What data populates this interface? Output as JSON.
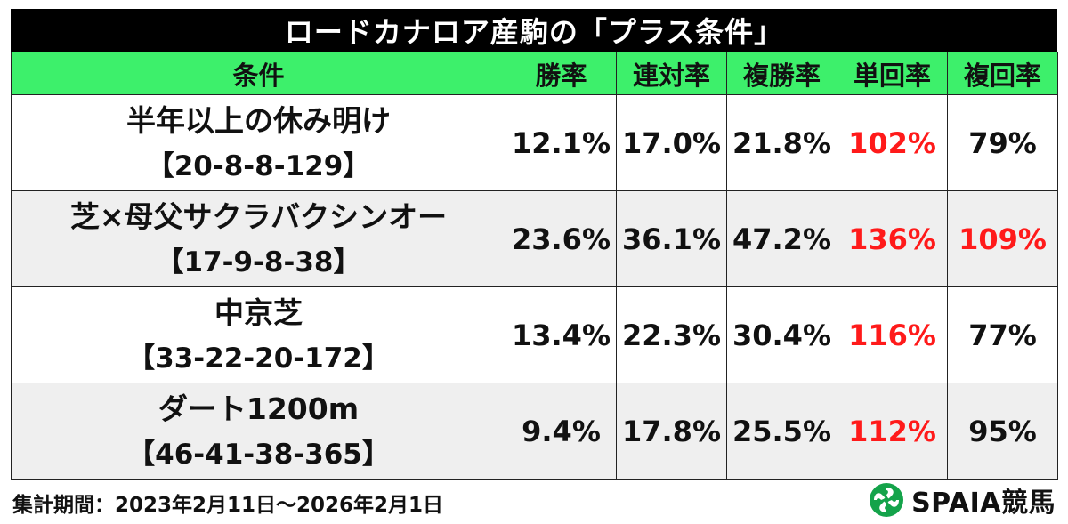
{
  "title": "ロードカナロア産駒の「プラス条件」",
  "table": {
    "headers": [
      "条件",
      "勝率",
      "連対率",
      "複勝率",
      "単回率",
      "複回率"
    ],
    "rows": [
      {
        "condition": "半年以上の休み明け",
        "record": "【20-8-8-129】",
        "win_rate": "12.1%",
        "place_rate": "17.0%",
        "show_rate": "21.8%",
        "win_return": "102%",
        "show_return": "79%"
      },
      {
        "condition": "芝×母父サクラバクシンオー",
        "record": "【17-9-8-38】",
        "win_rate": "23.6%",
        "place_rate": "36.1%",
        "show_rate": "47.2%",
        "win_return": "136%",
        "show_return": "109%"
      },
      {
        "condition": "中京芝",
        "record": "【33-22-20-172】",
        "win_rate": "13.4%",
        "place_rate": "22.3%",
        "show_rate": "30.4%",
        "win_return": "116%",
        "show_return": "77%"
      },
      {
        "condition": "ダート1200m",
        "record": "【46-41-38-365】",
        "win_rate": "9.4%",
        "place_rate": "17.8%",
        "show_rate": "25.5%",
        "win_return": "112%",
        "show_return": "95%"
      }
    ]
  },
  "footer": {
    "period": "集計期間：2023年2月11日～2026年2月1日",
    "logo_text": "SPAIA競馬",
    "logo_icon": "spaia-swirl-icon"
  },
  "colors": {
    "title_bg": "#000000",
    "header_bg": "#3df06b",
    "shaded_row_bg": "#efefef",
    "highlight": "#ff1a1a",
    "logo_green": "#14a34a"
  }
}
